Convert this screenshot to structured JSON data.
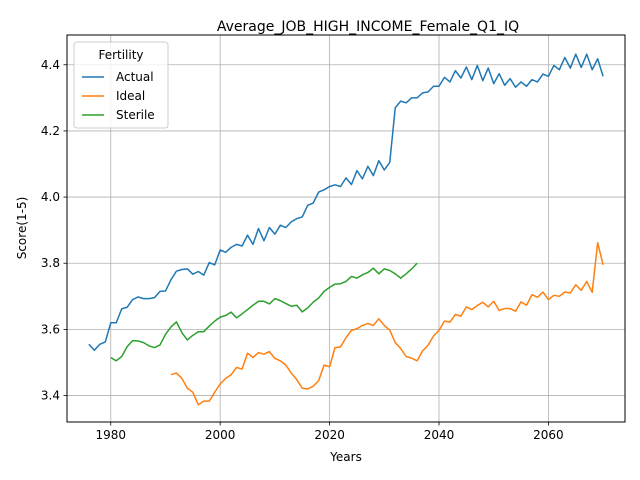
{
  "chart_data": {
    "type": "line",
    "title": "Average_JOB_HIGH_INCOME_Female_Q1_IQ",
    "xlabel": "Years",
    "ylabel": "Score(1-5)",
    "xlim": [
      1972,
      2074
    ],
    "ylim": [
      3.32,
      4.49
    ],
    "x_ticks": [
      1980,
      2000,
      2020,
      2040,
      2060
    ],
    "y_ticks": [
      3.4,
      3.6,
      3.8,
      4.0,
      4.2,
      4.4
    ],
    "x_tick_labels": [
      "1980",
      "2000",
      "2020",
      "2040",
      "2060"
    ],
    "y_tick_labels": [
      "3.4",
      "3.6",
      "3.8",
      "4.0",
      "4.2",
      "4.4"
    ],
    "grid": true,
    "legend": {
      "title": "Fertility",
      "position": "upper-left"
    },
    "series": [
      {
        "name": "Actual",
        "color": "#1f77b4",
        "x": [
          1976,
          1977,
          1978,
          1979,
          1980,
          1981,
          1982,
          1983,
          1984,
          1985,
          1986,
          1987,
          1988,
          1989,
          1990,
          1991,
          1992,
          1993,
          1994,
          1995,
          1996,
          1997,
          1998,
          1999,
          2000,
          2001,
          2002,
          2003,
          2004,
          2005,
          2006,
          2007,
          2008,
          2009,
          2010,
          2011,
          2012,
          2013,
          2014,
          2015,
          2016,
          2017,
          2018,
          2019,
          2020,
          2021,
          2022,
          2023,
          2024,
          2025,
          2026,
          2027,
          2028,
          2029,
          2030,
          2031,
          2032,
          2033,
          2034,
          2035,
          2036,
          2037,
          2038,
          2039,
          2040,
          2041,
          2042,
          2043,
          2044,
          2045,
          2046,
          2047,
          2048,
          2049,
          2050,
          2051,
          2052,
          2053,
          2054,
          2055,
          2056,
          2057,
          2058,
          2059,
          2060,
          2061,
          2062,
          2063,
          2064,
          2065,
          2066,
          2067,
          2068,
          2069,
          2070
        ],
        "values": [
          3.555,
          3.537,
          3.555,
          3.562,
          3.62,
          3.62,
          3.662,
          3.667,
          3.69,
          3.698,
          3.693,
          3.693,
          3.696,
          3.715,
          3.716,
          3.75,
          3.776,
          3.781,
          3.783,
          3.767,
          3.775,
          3.764,
          3.802,
          3.795,
          3.84,
          3.833,
          3.848,
          3.857,
          3.852,
          3.885,
          3.857,
          3.905,
          3.868,
          3.908,
          3.888,
          3.915,
          3.908,
          3.925,
          3.935,
          3.94,
          3.975,
          3.982,
          4.015,
          4.022,
          4.032,
          4.037,
          4.032,
          4.058,
          4.038,
          4.08,
          4.055,
          4.093,
          4.065,
          4.11,
          4.082,
          4.105,
          4.27,
          4.29,
          4.285,
          4.3,
          4.3,
          4.315,
          4.318,
          4.335,
          4.335,
          4.362,
          4.348,
          4.382,
          4.36,
          4.393,
          4.355,
          4.398,
          4.352,
          4.39,
          4.343,
          4.373,
          4.338,
          4.358,
          4.332,
          4.348,
          4.335,
          4.355,
          4.348,
          4.372,
          4.365,
          4.398,
          4.385,
          4.422,
          4.39,
          4.432,
          4.392,
          4.432,
          4.385,
          4.418,
          4.365
        ]
      },
      {
        "name": "Ideal",
        "color": "#ff7f0e",
        "x": [
          1991,
          1992,
          1993,
          1994,
          1995,
          1996,
          1997,
          1998,
          1999,
          2000,
          2001,
          2002,
          2003,
          2004,
          2005,
          2006,
          2007,
          2008,
          2009,
          2010,
          2011,
          2012,
          2013,
          2014,
          2015,
          2016,
          2017,
          2018,
          2019,
          2020,
          2021,
          2022,
          2023,
          2024,
          2025,
          2026,
          2027,
          2028,
          2029,
          2030,
          2031,
          2032,
          2033,
          2034,
          2035,
          2036,
          2037,
          2038,
          2039,
          2040,
          2041,
          2042,
          2043,
          2044,
          2045,
          2046,
          2047,
          2048,
          2049,
          2050,
          2051,
          2052,
          2053,
          2054,
          2055,
          2056,
          2057,
          2058,
          2059,
          2060,
          2061,
          2062,
          2063,
          2064,
          2065,
          2066,
          2067,
          2068,
          2069,
          2070
        ],
        "values": [
          3.463,
          3.468,
          3.452,
          3.422,
          3.41,
          3.372,
          3.383,
          3.383,
          3.41,
          3.435,
          3.452,
          3.463,
          3.485,
          3.48,
          3.528,
          3.515,
          3.53,
          3.525,
          3.533,
          3.512,
          3.505,
          3.492,
          3.468,
          3.448,
          3.422,
          3.42,
          3.428,
          3.445,
          3.492,
          3.487,
          3.545,
          3.547,
          3.575,
          3.597,
          3.602,
          3.612,
          3.618,
          3.612,
          3.632,
          3.612,
          3.598,
          3.56,
          3.542,
          3.518,
          3.513,
          3.505,
          3.535,
          3.552,
          3.58,
          3.597,
          3.625,
          3.622,
          3.645,
          3.64,
          3.668,
          3.66,
          3.672,
          3.682,
          3.668,
          3.685,
          3.657,
          3.663,
          3.663,
          3.655,
          3.683,
          3.673,
          3.705,
          3.697,
          3.713,
          3.69,
          3.703,
          3.7,
          3.713,
          3.71,
          3.735,
          3.718,
          3.745,
          3.712,
          3.862,
          3.795
        ]
      },
      {
        "name": "Sterile",
        "color": "#2ca02c",
        "x": [
          1980,
          1981,
          1982,
          1983,
          1984,
          1985,
          1986,
          1987,
          1988,
          1989,
          1990,
          1991,
          1992,
          1993,
          1994,
          1995,
          1996,
          1997,
          1998,
          1999,
          2000,
          2001,
          2002,
          2003,
          2004,
          2005,
          2006,
          2007,
          2008,
          2009,
          2010,
          2011,
          2012,
          2013,
          2014,
          2015,
          2016,
          2017,
          2018,
          2019,
          2020,
          2021,
          2022,
          2023,
          2024,
          2025,
          2026,
          2027,
          2028,
          2029,
          2030,
          2031,
          2032,
          2033,
          2034,
          2035,
          2036
        ],
        "values": [
          3.515,
          3.505,
          3.518,
          3.548,
          3.566,
          3.565,
          3.56,
          3.55,
          3.545,
          3.553,
          3.585,
          3.607,
          3.623,
          3.59,
          3.568,
          3.582,
          3.593,
          3.593,
          3.61,
          3.625,
          3.637,
          3.642,
          3.652,
          3.635,
          3.647,
          3.66,
          3.673,
          3.685,
          3.685,
          3.677,
          3.693,
          3.687,
          3.678,
          3.67,
          3.673,
          3.653,
          3.665,
          3.682,
          3.695,
          3.715,
          3.727,
          3.737,
          3.738,
          3.745,
          3.76,
          3.755,
          3.765,
          3.772,
          3.785,
          3.768,
          3.783,
          3.778,
          3.768,
          3.755,
          3.768,
          3.783,
          3.8
        ]
      }
    ]
  }
}
